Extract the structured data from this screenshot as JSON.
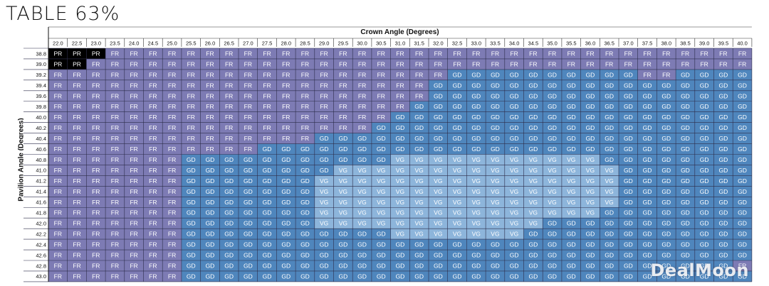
{
  "chart_data": {
    "type": "table",
    "title": "TABLE 63%",
    "xlabel": "Crown Angle (Degrees)",
    "ylabel": "Pavilion Angle (Degrees)",
    "columns": [
      "22.0",
      "22.5",
      "23.0",
      "23.5",
      "24.0",
      "24.5",
      "25.0",
      "25.5",
      "26.0",
      "26.5",
      "27.0",
      "27.5",
      "28.0",
      "28.5",
      "29.0",
      "29.5",
      "30.0",
      "30.5",
      "31.0",
      "31.5",
      "32.0",
      "32.5",
      "33.0",
      "33.5",
      "34.0",
      "34.5",
      "35.0",
      "35.5",
      "36.0",
      "36.5",
      "37.0",
      "37.5",
      "38.0",
      "38.5",
      "39.0",
      "39.5",
      "40.0"
    ],
    "rows": [
      "38.8",
      "39.0",
      "39.2",
      "39.4",
      "39.6",
      "39.8",
      "40.0",
      "40.2",
      "40.4",
      "40.6",
      "40.8",
      "41.0",
      "41.2",
      "41.4",
      "41.6",
      "41.8",
      "42.0",
      "42.2",
      "42.4",
      "42.6",
      "42.8",
      "43.0"
    ],
    "row_grades": [
      "PR PR PR FR FR FR FR FR FR FR FR FR FR FR FR FR FR FR FR FR FR FR FR FR FR FR FR FR FR FR FR FR FR FR FR FR FR",
      "PR PR FR FR FR FR FR FR FR FR FR FR FR FR FR FR FR FR FR FR FR FR FR FR FR FR FR FR FR FR FR FR FR FR FR FR FR",
      "FR FR FR FR FR FR FR FR FR FR FR FR FR FR FR FR FR FR FR FR FR GD GD GD GD GD GD GD GD GD GD FR FR GD GD GD GD",
      "FR FR FR FR FR FR FR FR FR FR FR FR FR FR FR FR FR FR FR FR GD GD GD GD GD GD GD GD GD GD GD GD GD GD GD GD GD",
      "FR FR FR FR FR FR FR FR FR FR FR FR FR FR FR FR FR FR FR FR GD GD GD GD GD GD GD GD GD GD GD GD GD GD GD GD GD",
      "FR FR FR FR FR FR FR FR FR FR FR FR FR FR FR FR FR FR FR GD GD GD GD GD GD GD GD GD GD GD GD GD GD GD GD GD GD",
      "FR FR FR FR FR FR FR FR FR FR FR FR FR FR FR FR FR FR GD GD GD GD GD GD GD GD GD GD GD GD GD GD GD GD GD GD GD",
      "FR FR FR FR FR FR FR FR FR FR FR FR FR FR FR FR FR GD GD GD GD GD GD GD GD GD GD GD GD GD GD GD GD GD GD GD GD",
      "FR FR FR FR FR FR FR FR FR FR FR FR FR FR GD GD GD GD GD GD GD GD GD GD GD GD GD GD GD GD GD GD GD GD GD GD GD",
      "FR FR FR FR FR FR FR FR FR FR FR GD GD GD GD GD GD GD GD GD GD GD GD GD GD GD GD GD GD GD GD GD GD GD GD GD GD",
      "FR FR FR FR FR FR FR GD GD GD GD GD GD GD GD GD GD GD VG VG VG VG VG VG VG VG VG VG VG GD GD GD GD GD GD GD GD",
      "FR FR FR FR FR FR FR GD GD GD GD GD GD GD GD VG VG VG VG VG VG VG VG VG VG VG VG VG VG VG GD GD GD GD GD GD GD",
      "FR FR FR FR FR FR FR GD GD GD GD GD GD GD VG VG VG VG VG VG VG VG VG VG VG VG VG VG VG VG GD GD GD GD GD GD GD",
      "FR FR FR FR FR FR FR GD GD GD GD GD GD GD VG VG VG VG VG VG VG VG VG VG VG VG VG VG VG VG GD GD GD GD GD GD GD",
      "FR FR FR FR FR FR FR GD GD GD GD GD GD GD VG VG VG VG VG VG VG VG VG VG VG VG VG VG VG VG GD GD GD GD GD GD GD",
      "FR FR FR FR FR FR FR GD GD GD GD GD GD GD VG VG VG VG VG VG VG VG VG VG VG VG VG VG VG GD GD GD GD GD GD GD GD",
      "FR FR FR FR FR FR FR GD GD GD GD GD GD GD VG VG VG VG VG VG VG VG VG VG VG VG GD GD GD GD GD GD GD GD GD GD GD",
      "FR FR FR FR FR FR FR GD GD GD GD GD GD GD GD GD GD GD VG VG VG VG VG VG VG GD GD GD GD GD GD GD GD GD GD GD GD",
      "FR FR FR FR FR FR FR GD GD GD GD GD GD GD GD GD GD GD GD GD GD GD GD GD GD GD GD GD GD GD GD GD GD GD GD GD GD",
      "FR FR FR FR FR FR FR GD GD GD GD GD GD GD GD GD GD GD GD GD GD GD GD GD GD GD GD GD GD GD GD GD GD GD GD GD GD",
      "FR FR FR FR FR FR FR GD GD GD GD GD GD GD GD GD GD GD GD GD GD GD GD GD GD GD GD GD GD GD GD GD GD GD GD GD FR",
      "FR FR FR FR FR FR FR GD GD GD GD GD GD GD GD GD GD GD GD GD GD GD GD GD GD GD GD GD GD GD GD GD GD GD GD GD GD"
    ],
    "grade_colors": {
      "PR": "#000000",
      "FR": "#7d7bb4",
      "GD": "#4f86bd",
      "VG": "#8db5db"
    },
    "grid": true
  },
  "watermark": {
    "text": "DealMoon"
  }
}
